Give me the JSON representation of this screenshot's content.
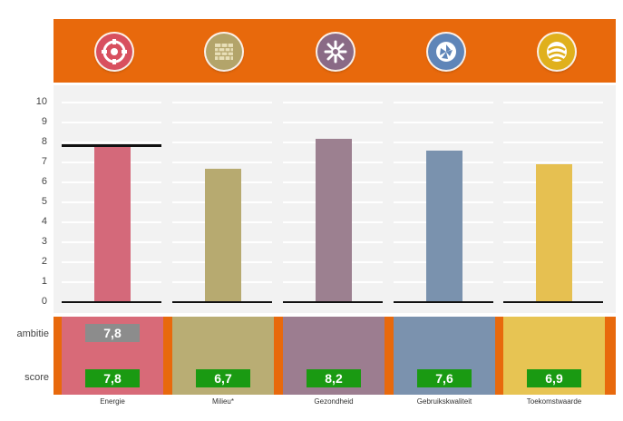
{
  "chart_data": {
    "type": "bar",
    "categories": [
      "Energie",
      "Milieu*",
      "Gezondheid",
      "Gebruikskwaliteit",
      "Toekomstwaarde"
    ],
    "values": [
      7.8,
      6.7,
      8.2,
      7.6,
      6.9
    ],
    "score_labels": [
      "7,8",
      "6,7",
      "8,2",
      "7,6",
      "6,9"
    ],
    "ambition": [
      7.8,
      null,
      null,
      null,
      null
    ],
    "ambition_labels": [
      "7,8",
      "",
      "",
      "",
      ""
    ],
    "ylim": [
      0,
      10
    ],
    "yticks": [
      "0",
      "1",
      "2",
      "3",
      "4",
      "5",
      "6",
      "7",
      "8",
      "9",
      "10"
    ],
    "grid": true,
    "colors": [
      "#d4697a",
      "#b7aa70",
      "#9c8090",
      "#7a92ae",
      "#e6c051"
    ],
    "column_colors": [
      "#d86a78",
      "#b9ad74",
      "#9c7d90",
      "#7b92ae",
      "#e7c453"
    ]
  },
  "rows": {
    "ambition_label": "ambitie",
    "score_label": "score"
  },
  "icons": [
    {
      "name": "energy-icon",
      "color": "#d8505f"
    },
    {
      "name": "wall-bricks-icon",
      "color": "#b3a46a"
    },
    {
      "name": "health-icon",
      "color": "#8a6a86"
    },
    {
      "name": "aperture-icon",
      "color": "#5f85b8"
    },
    {
      "name": "future-value-icon",
      "color": "#e0b01c"
    }
  ],
  "theme": {
    "orange": "#e8690c",
    "ambition_box": "#8c8c8c",
    "score_box": "#1a9a12"
  }
}
